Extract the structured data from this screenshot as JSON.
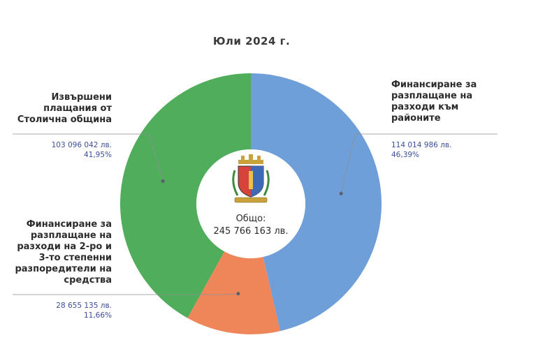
{
  "chart_data": {
    "type": "pie",
    "title": "Юли 2024 г.",
    "center": {
      "label": "Общо:",
      "value": "245 766 163 лв."
    },
    "slices": [
      {
        "label_lines": [
          "Финансиране за",
          "разплащане на",
          "разходи към",
          "районите"
        ],
        "value": 114014986,
        "value_text": "114 014 986 лв.",
        "percent": 46.39,
        "percent_text": "46,39%",
        "color": "#6f9fd8"
      },
      {
        "label_lines": [
          "Финансиране за",
          "разплащане на",
          "разходи на 2-ро и",
          "3-то степенни",
          "разпоредители на",
          "средства"
        ],
        "value": 28655135,
        "value_text": "28 655 135 лв.",
        "percent": 11.66,
        "percent_text": "11,66%",
        "color": "#ef865a"
      },
      {
        "label_lines": [
          "Извършени",
          "плащания от",
          "Столична община"
        ],
        "value": 103096042,
        "value_text": "103 096 042 лв.",
        "percent": 41.95,
        "percent_text": "41,95%",
        "color": "#4fad5b"
      }
    ]
  }
}
